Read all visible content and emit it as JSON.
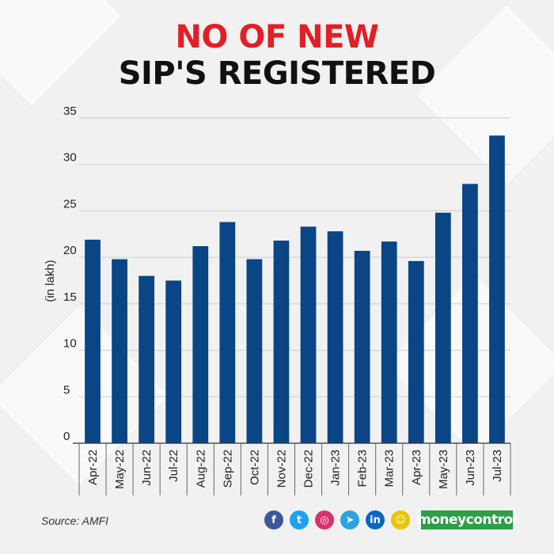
{
  "header": {
    "title_line1": "NO OF NEW",
    "title_line2": "SIP'S REGISTERED"
  },
  "chart_data": {
    "type": "bar",
    "categories": [
      "Apr-22",
      "May-22",
      "Jun-22",
      "Jul-22",
      "Aug-22",
      "Sep-22",
      "Oct-22",
      "Nov-22",
      "Dec-22",
      "Jan-23",
      "Feb-23",
      "Mar-23",
      "Apr-23",
      "May-23",
      "Jun-23",
      "Jul-23"
    ],
    "values": [
      21.9,
      19.8,
      18.0,
      17.5,
      21.2,
      23.8,
      19.8,
      21.8,
      23.3,
      22.8,
      20.7,
      21.7,
      19.6,
      24.8,
      27.9,
      33.1
    ],
    "ylabel": "(in lakh)",
    "ylim": [
      0,
      35
    ],
    "yticks": [
      0,
      5,
      10,
      15,
      20,
      25,
      30,
      35
    ],
    "grid": true,
    "bar_color": "#0a4586"
  },
  "footer": {
    "source": "Source: AMFI",
    "brand": "moneycontrol",
    "icons": [
      {
        "name": "facebook-icon",
        "glyph": "f",
        "color": "#3b5998"
      },
      {
        "name": "twitter-icon",
        "glyph": "t",
        "color": "#1da1f2"
      },
      {
        "name": "instagram-icon",
        "glyph": "◎",
        "color": "#d6336c"
      },
      {
        "name": "telegram-icon",
        "glyph": "➤",
        "color": "#2aa3df"
      },
      {
        "name": "linkedin-icon",
        "glyph": "in",
        "color": "#0a66c2"
      },
      {
        "name": "snapchat-icon",
        "glyph": "☺",
        "color": "#e9c500"
      }
    ]
  }
}
